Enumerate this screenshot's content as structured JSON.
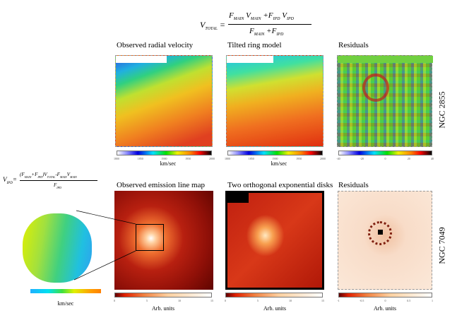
{
  "equations": {
    "v_total": {
      "lhs": "V",
      "lhs_sub": "TOTAL",
      "num": [
        [
          "F",
          "MAIN"
        ],
        [
          "V",
          "MAIN"
        ],
        [
          "+F",
          "IPD"
        ],
        [
          "V",
          "IPD"
        ]
      ],
      "den": [
        [
          "F",
          "MAIN"
        ],
        [
          "+F",
          "IPD"
        ]
      ]
    },
    "v_ipd": {
      "lhs": "V",
      "lhs_sub": "IPD",
      "num_text": "(F",
      "num": [
        [
          "F",
          "MAIN"
        ],
        [
          "+F",
          "IPD"
        ],
        [
          ")V",
          "TOTAL"
        ],
        [
          "-F",
          "MAIN"
        ],
        [
          "V",
          "MAIN"
        ]
      ],
      "den": [
        [
          "F",
          "IPD"
        ]
      ]
    }
  },
  "rows": [
    {
      "galaxy": "NGC 2855",
      "panels": [
        {
          "title": "Observed radial velocity",
          "unit": "km/sec",
          "ticks": [
            "1800",
            "1850",
            "1900",
            "1950",
            "2000"
          ]
        },
        {
          "title": "Tilted ring model",
          "unit": "km/sec",
          "ticks": [
            "1800",
            "1850",
            "1900",
            "1950",
            "2000"
          ]
        },
        {
          "title": "Residuals",
          "unit": "",
          "ticks": [
            "-40",
            "-20",
            "0",
            "20",
            "40"
          ]
        }
      ]
    },
    {
      "galaxy": "NGC 7049",
      "panels": [
        {
          "title": "Observed emission line map",
          "unit": "Arb. units",
          "ticks": [
            "0",
            "5",
            "10",
            "15"
          ]
        },
        {
          "title": "Two orthogonal exponential disks",
          "unit": "Arb. units",
          "ticks": [
            "0",
            "5",
            "10",
            "15"
          ]
        },
        {
          "title": "Residuals",
          "unit": "Arb. units",
          "ticks": [
            "-1",
            "-0.5",
            "0",
            "0.5",
            "1"
          ]
        }
      ]
    }
  ],
  "inset": {
    "unit": "km/sec",
    "ticks": [
      "",
      "",
      "",
      "",
      "",
      ""
    ]
  }
}
